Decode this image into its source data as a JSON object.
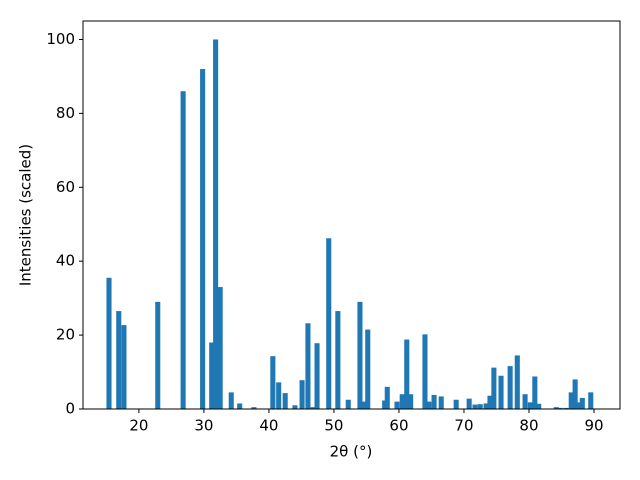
{
  "chart_data": {
    "type": "bar",
    "xlabel": "2θ (°)",
    "ylabel": "Intensities (scaled)",
    "x": [
      15.4,
      16.9,
      17.7,
      22.9,
      26.8,
      29.8,
      31.2,
      31.8,
      32.5,
      34.2,
      35.5,
      37.7,
      40.6,
      41.5,
      42.5,
      44.0,
      45.1,
      46.0,
      46.8,
      47.4,
      49.2,
      50.6,
      52.2,
      54.0,
      54.6,
      55.2,
      57.8,
      58.2,
      59.7,
      60.5,
      61.2,
      61.8,
      64.0,
      64.6,
      65.4,
      66.5,
      68.8,
      70.8,
      71.7,
      72.5,
      73.4,
      74.0,
      74.6,
      75.7,
      77.1,
      78.2,
      79.4,
      80.2,
      80.9,
      81.5,
      84.2,
      84.8,
      85.7,
      86.5,
      87.1,
      87.5,
      88.2,
      89.5
    ],
    "values": [
      35.5,
      26.5,
      22.7,
      29,
      86,
      92,
      18,
      100,
      33,
      4.5,
      1.5,
      0.5,
      14.3,
      7.2,
      4.3,
      1,
      7.8,
      23.2,
      0.5,
      17.8,
      46.2,
      26.5,
      2.5,
      29,
      2,
      21.5,
      2.3,
      6,
      2,
      4,
      18.8,
      4,
      20.2,
      2,
      3.8,
      3.4,
      2.5,
      2.8,
      1.2,
      1.3,
      1.5,
      3.6,
      11.2,
      9,
      11.6,
      14.5,
      4,
      1.8,
      8.8,
      1.4,
      0.5,
      0.3,
      0.3,
      4.5,
      8,
      1.8,
      3,
      4.5
    ],
    "color": "#1f77b4",
    "xlim": [
      11.4,
      94.0
    ],
    "xticks": [
      20,
      30,
      40,
      50,
      60,
      70,
      80,
      90
    ],
    "ylim": [
      0,
      105
    ],
    "yticks": [
      0,
      20,
      40,
      60,
      80,
      100
    ]
  }
}
